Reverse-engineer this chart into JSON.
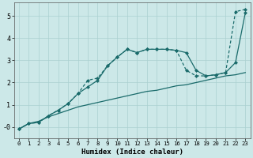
{
  "xlabel": "Humidex (Indice chaleur)",
  "bg_color": "#cce8e8",
  "grid_color": "#aad0d0",
  "line_color": "#1a6b6b",
  "xlim": [
    -0.5,
    23.5
  ],
  "ylim": [
    -0.5,
    5.6
  ],
  "xticks": [
    0,
    1,
    2,
    3,
    4,
    5,
    6,
    7,
    8,
    9,
    10,
    11,
    12,
    13,
    14,
    15,
    16,
    17,
    18,
    19,
    20,
    21,
    22,
    23
  ],
  "yticks": [
    0,
    1,
    2,
    3,
    4,
    5
  ],
  "ytick_labels": [
    "-0",
    "1",
    "2",
    "3",
    "4",
    "5"
  ],
  "line1_x": [
    0,
    1,
    2,
    3,
    4,
    5,
    6,
    7,
    8,
    9,
    10,
    11,
    12,
    13,
    14,
    15,
    16,
    17,
    18,
    19,
    20,
    21,
    22,
    23
  ],
  "line1_y": [
    -0.1,
    0.15,
    0.25,
    0.45,
    0.6,
    0.75,
    0.9,
    1.0,
    1.1,
    1.2,
    1.3,
    1.4,
    1.5,
    1.6,
    1.65,
    1.75,
    1.85,
    1.9,
    2.0,
    2.1,
    2.2,
    2.3,
    2.35,
    2.45
  ],
  "line2_x": [
    0,
    1,
    2,
    3,
    4,
    5,
    6,
    7,
    8,
    9,
    10,
    11,
    12,
    13,
    14,
    15,
    16,
    17,
    18,
    19,
    20,
    21,
    22,
    23
  ],
  "line2_y": [
    -0.1,
    0.15,
    0.2,
    0.5,
    0.75,
    1.05,
    1.5,
    1.8,
    2.1,
    2.75,
    3.15,
    3.5,
    3.35,
    3.5,
    3.5,
    3.5,
    3.45,
    3.35,
    2.55,
    2.3,
    2.35,
    2.45,
    2.9,
    5.15
  ],
  "line3_x": [
    0,
    1,
    2,
    3,
    4,
    5,
    6,
    7,
    8,
    9,
    10,
    11,
    12,
    13,
    14,
    15,
    16,
    17,
    18,
    19,
    20,
    21,
    22,
    23
  ],
  "line3_y": [
    -0.1,
    0.15,
    0.2,
    0.5,
    0.75,
    1.05,
    1.5,
    2.1,
    2.2,
    2.75,
    3.15,
    3.5,
    3.35,
    3.5,
    3.5,
    3.5,
    3.45,
    2.55,
    2.3,
    2.3,
    2.35,
    2.45,
    5.2,
    5.3
  ]
}
